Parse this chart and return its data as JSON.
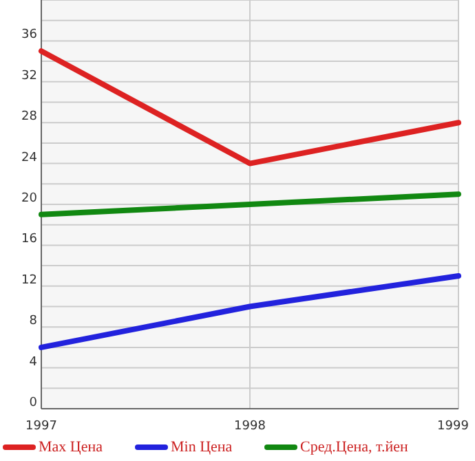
{
  "chart_data": {
    "type": "line",
    "x": [
      1997,
      1998,
      1999
    ],
    "xlim": [
      1997,
      1999
    ],
    "xticks": [
      1997,
      1998,
      1999
    ],
    "ylim": [
      0,
      40
    ],
    "yticks": [
      0,
      {
        "value": 2,
        "label": null
      },
      4,
      {
        "value": 6,
        "label": null
      },
      8,
      {
        "value": 10,
        "label": null
      },
      12,
      {
        "value": 14,
        "label": null
      },
      16,
      {
        "value": 18,
        "label": null
      },
      20,
      {
        "value": 22,
        "label": null
      },
      24,
      {
        "value": 26,
        "label": null
      },
      28,
      {
        "value": 30,
        "label": null
      },
      32,
      {
        "value": 34,
        "label": null
      },
      36,
      {
        "value": 38,
        "label": null
      },
      {
        "value": 40,
        "label": null
      }
    ],
    "grid": true,
    "legend": "bottom",
    "marker": "none",
    "line_style": "solid",
    "series": [
      {
        "name": "Max Цена",
        "color": "#dd2222",
        "values": [
          35,
          24,
          28
        ]
      },
      {
        "name": "Min Цена",
        "color": "#2222dd",
        "values": [
          6,
          10,
          13
        ]
      },
      {
        "name": "Сред.Цена, т.йен",
        "color": "#118811",
        "values": [
          19,
          20,
          21
        ]
      }
    ]
  }
}
